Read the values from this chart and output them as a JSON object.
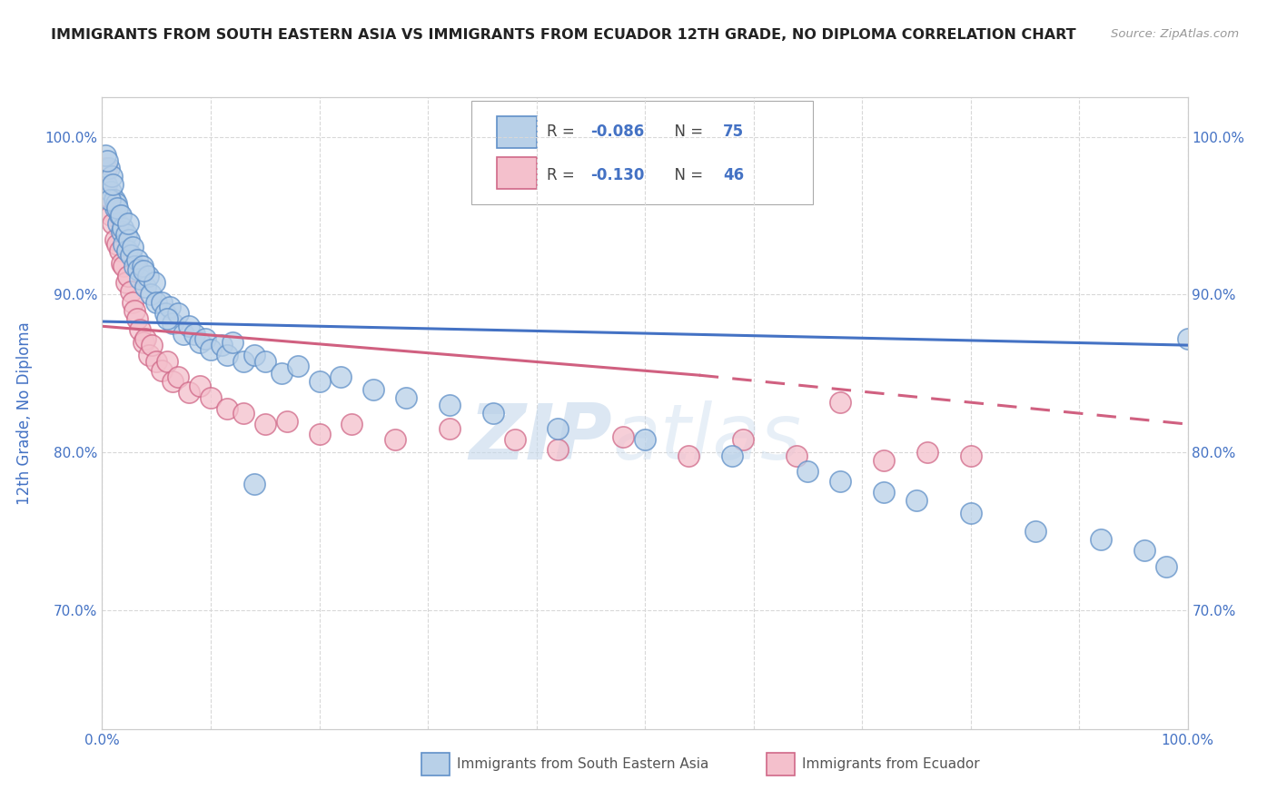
{
  "title": "IMMIGRANTS FROM SOUTH EASTERN ASIA VS IMMIGRANTS FROM ECUADOR 12TH GRADE, NO DIPLOMA CORRELATION CHART",
  "source": "Source: ZipAtlas.com",
  "ylabel": "12th Grade, No Diploma",
  "series1_label": "Immigrants from South Eastern Asia",
  "series1_R": "-0.086",
  "series1_N": "75",
  "series1_color": "#b8d0e8",
  "series1_edge_color": "#6090c8",
  "series1_line_color": "#4472c4",
  "series2_label": "Immigrants from Ecuador",
  "series2_R": "-0.130",
  "series2_N": "46",
  "series2_color": "#f4c0cc",
  "series2_edge_color": "#d06888",
  "series2_line_color": "#d06080",
  "watermark_zip": "ZIP",
  "watermark_atlas": "atlas",
  "title_color": "#222222",
  "axis_label_color": "#4472c4",
  "R_color": "#4472c4",
  "N_color": "#4472c4",
  "background_color": "#ffffff",
  "grid_color": "#d8d8d8",
  "yaxis_tick_values": [
    0.7,
    0.8,
    0.9,
    1.0
  ],
  "yaxis_tick_labels": [
    "70.0%",
    "80.0%",
    "90.0%",
    "100.0%"
  ],
  "xlim": [
    0.0,
    1.0
  ],
  "ylim": [
    0.625,
    1.025
  ],
  "trend1_x0": 0.0,
  "trend1_y0": 0.883,
  "trend1_x1": 1.0,
  "trend1_y1": 0.868,
  "trend2_x0": 0.0,
  "trend2_y0": 0.88,
  "trend2_x1_solid": 0.55,
  "trend2_y1_solid": 0.849,
  "trend2_x1_dash": 1.0,
  "trend2_y1_dash": 0.818,
  "series1_x": [
    0.004,
    0.006,
    0.008,
    0.009,
    0.011,
    0.012,
    0.013,
    0.015,
    0.016,
    0.018,
    0.019,
    0.02,
    0.022,
    0.023,
    0.025,
    0.026,
    0.028,
    0.03,
    0.032,
    0.033,
    0.035,
    0.037,
    0.04,
    0.042,
    0.045,
    0.048,
    0.05,
    0.055,
    0.058,
    0.062,
    0.065,
    0.07,
    0.075,
    0.08,
    0.085,
    0.09,
    0.095,
    0.1,
    0.11,
    0.115,
    0.12,
    0.13,
    0.14,
    0.15,
    0.165,
    0.18,
    0.2,
    0.22,
    0.25,
    0.28,
    0.32,
    0.36,
    0.42,
    0.5,
    0.58,
    0.65,
    0.68,
    0.72,
    0.75,
    0.8,
    0.86,
    0.92,
    0.96,
    0.98,
    1.0,
    0.003,
    0.005,
    0.007,
    0.01,
    0.014,
    0.017,
    0.024,
    0.038,
    0.06,
    0.14
  ],
  "series1_y": [
    0.97,
    0.98,
    0.965,
    0.975,
    0.96,
    0.955,
    0.958,
    0.945,
    0.95,
    0.94,
    0.942,
    0.932,
    0.938,
    0.928,
    0.935,
    0.925,
    0.93,
    0.918,
    0.922,
    0.916,
    0.91,
    0.918,
    0.905,
    0.912,
    0.9,
    0.908,
    0.895,
    0.895,
    0.888,
    0.892,
    0.882,
    0.888,
    0.875,
    0.88,
    0.875,
    0.87,
    0.872,
    0.865,
    0.868,
    0.862,
    0.87,
    0.858,
    0.862,
    0.858,
    0.85,
    0.855,
    0.845,
    0.848,
    0.84,
    0.835,
    0.83,
    0.825,
    0.815,
    0.808,
    0.798,
    0.788,
    0.782,
    0.775,
    0.77,
    0.762,
    0.75,
    0.745,
    0.738,
    0.728,
    0.872,
    0.988,
    0.985,
    0.96,
    0.97,
    0.955,
    0.95,
    0.945,
    0.915,
    0.885,
    0.78
  ],
  "series2_x": [
    0.004,
    0.006,
    0.008,
    0.01,
    0.012,
    0.014,
    0.016,
    0.018,
    0.02,
    0.022,
    0.024,
    0.026,
    0.028,
    0.03,
    0.032,
    0.035,
    0.038,
    0.04,
    0.043,
    0.046,
    0.05,
    0.055,
    0.06,
    0.065,
    0.07,
    0.08,
    0.09,
    0.1,
    0.115,
    0.13,
    0.15,
    0.17,
    0.2,
    0.23,
    0.27,
    0.32,
    0.38,
    0.42,
    0.48,
    0.54,
    0.59,
    0.64,
    0.68,
    0.72,
    0.76,
    0.8
  ],
  "series2_y": [
    0.98,
    0.962,
    0.95,
    0.945,
    0.935,
    0.932,
    0.928,
    0.92,
    0.918,
    0.908,
    0.912,
    0.902,
    0.895,
    0.89,
    0.885,
    0.878,
    0.87,
    0.872,
    0.862,
    0.868,
    0.858,
    0.852,
    0.858,
    0.845,
    0.848,
    0.838,
    0.842,
    0.835,
    0.828,
    0.825,
    0.818,
    0.82,
    0.812,
    0.818,
    0.808,
    0.815,
    0.808,
    0.802,
    0.81,
    0.798,
    0.808,
    0.798,
    0.832,
    0.795,
    0.8,
    0.798
  ]
}
